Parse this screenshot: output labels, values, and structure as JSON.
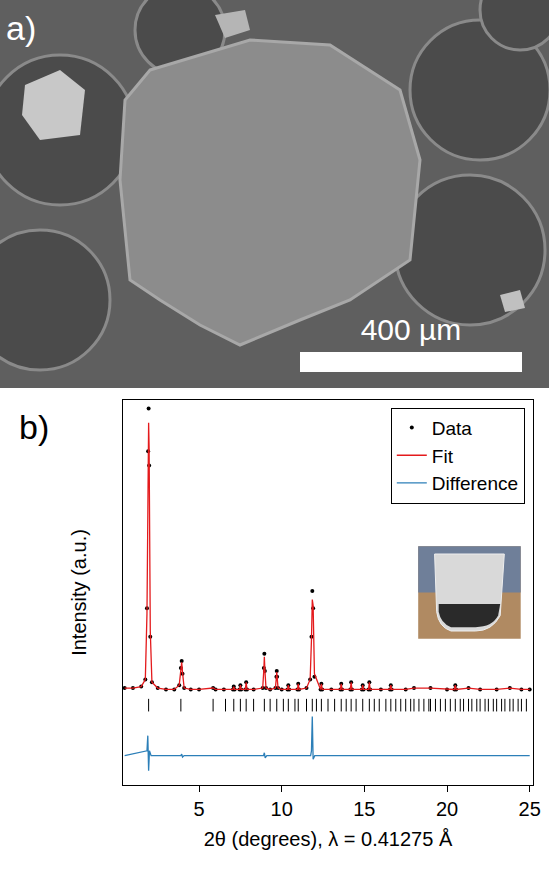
{
  "image_panel": {
    "label": "a)",
    "scale_bar": "400 µm"
  },
  "chart_data": {
    "type": "scatter",
    "label": "b)",
    "x_label": "2θ (degrees), λ = 0.41275 Å",
    "y_label": "Intensity (a.u.)",
    "xlim": [
      0.4,
      25.2
    ],
    "xticks": [
      5,
      10,
      15,
      20,
      25
    ],
    "ylim": [
      -0.32,
      1.03
    ],
    "tick_labels": "x",
    "grid": false,
    "legend": "upper right",
    "series": [
      {
        "name": "Data",
        "color": "#000000",
        "type": "scatter",
        "marker": "dot",
        "x": [
          0.5,
          1.0,
          1.5,
          1.75,
          1.85,
          1.92,
          1.95,
          1.98,
          2.05,
          2.15,
          2.5,
          3.0,
          3.5,
          3.8,
          3.9,
          3.95,
          4.0,
          4.1,
          4.5,
          5.0,
          5.85,
          6.0,
          6.5,
          7.05,
          7.1,
          7.15,
          7.45,
          7.5,
          7.55,
          7.8,
          7.85,
          7.9,
          8.3,
          8.85,
          8.92,
          8.95,
          8.98,
          9.05,
          9.3,
          9.62,
          9.68,
          9.7,
          9.72,
          9.78,
          10.0,
          10.35,
          10.4,
          10.45,
          10.95,
          11.0,
          11.05,
          11.5,
          11.72,
          11.8,
          11.85,
          11.9,
          11.98,
          12.35,
          12.4,
          12.45,
          13.0,
          13.55,
          13.6,
          13.65,
          14.15,
          14.2,
          14.25,
          14.85,
          14.9,
          14.95,
          15.25,
          15.3,
          15.35,
          16.0,
          16.55,
          16.6,
          16.65,
          17.5,
          18.0,
          19.0,
          20.0,
          20.45,
          20.5,
          20.55,
          21.3,
          22.0,
          23.0,
          23.8,
          24.5,
          25.0
        ],
        "values": [
          0.02,
          0.02,
          0.025,
          0.05,
          0.3,
          0.85,
          1.0,
          0.8,
          0.2,
          0.04,
          0.02,
          0.015,
          0.015,
          0.03,
          0.09,
          0.115,
          0.07,
          0.02,
          0.015,
          0.015,
          0.02,
          0.015,
          0.015,
          0.015,
          0.025,
          0.015,
          0.015,
          0.03,
          0.015,
          0.015,
          0.04,
          0.015,
          0.015,
          0.02,
          0.09,
          0.14,
          0.08,
          0.02,
          0.015,
          0.02,
          0.06,
          0.08,
          0.06,
          0.02,
          0.015,
          0.015,
          0.03,
          0.015,
          0.015,
          0.035,
          0.015,
          0.02,
          0.05,
          0.2,
          0.36,
          0.3,
          0.06,
          0.015,
          0.035,
          0.015,
          0.015,
          0.015,
          0.035,
          0.015,
          0.015,
          0.04,
          0.015,
          0.015,
          0.03,
          0.015,
          0.015,
          0.04,
          0.015,
          0.015,
          0.015,
          0.03,
          0.015,
          0.015,
          0.02,
          0.02,
          0.015,
          0.015,
          0.03,
          0.015,
          0.02,
          0.015,
          0.015,
          0.02,
          0.015,
          0.015
        ]
      },
      {
        "name": "Fit",
        "color": "#e41a1c",
        "type": "line",
        "line_style": "solid",
        "x": [
          0.5,
          1.0,
          1.5,
          1.75,
          1.85,
          1.92,
          1.95,
          1.98,
          2.05,
          2.15,
          2.5,
          3.0,
          3.5,
          3.8,
          3.9,
          3.95,
          4.0,
          4.1,
          4.5,
          5.0,
          5.85,
          6.0,
          6.5,
          7.05,
          7.1,
          7.15,
          7.45,
          7.5,
          7.55,
          7.8,
          7.85,
          7.9,
          8.3,
          8.85,
          8.92,
          8.95,
          8.98,
          9.05,
          9.3,
          9.62,
          9.68,
          9.7,
          9.72,
          9.78,
          10.0,
          10.35,
          10.4,
          10.45,
          10.95,
          11.0,
          11.05,
          11.5,
          11.72,
          11.8,
          11.85,
          11.9,
          11.98,
          12.35,
          12.4,
          12.45,
          13.0,
          13.55,
          13.6,
          13.65,
          14.15,
          14.2,
          14.25,
          14.85,
          14.9,
          14.95,
          15.25,
          15.3,
          15.35,
          16.0,
          16.55,
          16.6,
          16.65,
          17.5,
          18.0,
          19.0,
          20.0,
          20.45,
          20.5,
          20.55,
          21.3,
          22.0,
          23.0,
          23.8,
          24.5,
          25.0
        ],
        "values": [
          0.02,
          0.02,
          0.025,
          0.05,
          0.28,
          0.8,
          0.95,
          0.86,
          0.22,
          0.04,
          0.02,
          0.015,
          0.015,
          0.03,
          0.085,
          0.11,
          0.075,
          0.02,
          0.015,
          0.015,
          0.02,
          0.015,
          0.015,
          0.015,
          0.025,
          0.015,
          0.015,
          0.03,
          0.015,
          0.015,
          0.04,
          0.015,
          0.015,
          0.02,
          0.085,
          0.13,
          0.085,
          0.02,
          0.015,
          0.02,
          0.06,
          0.076,
          0.06,
          0.02,
          0.015,
          0.015,
          0.03,
          0.015,
          0.015,
          0.035,
          0.015,
          0.02,
          0.05,
          0.19,
          0.33,
          0.31,
          0.07,
          0.015,
          0.035,
          0.015,
          0.015,
          0.015,
          0.035,
          0.015,
          0.015,
          0.04,
          0.015,
          0.015,
          0.03,
          0.015,
          0.015,
          0.04,
          0.015,
          0.015,
          0.015,
          0.03,
          0.015,
          0.015,
          0.02,
          0.02,
          0.015,
          0.015,
          0.03,
          0.015,
          0.02,
          0.015,
          0.015,
          0.02,
          0.015,
          0.015
        ]
      },
      {
        "name": "Difference",
        "color": "#2c7fb8",
        "type": "line",
        "line_style": "solid",
        "x": [
          0.5,
          1.85,
          1.9,
          1.95,
          2.0,
          2.1,
          3.9,
          3.95,
          4.0,
          4.1,
          8.9,
          8.95,
          9.0,
          9.1,
          11.75,
          11.8,
          11.85,
          11.9,
          12.0,
          25.0
        ],
        "values": [
          -0.217,
          -0.2,
          -0.147,
          -0.27,
          -0.2,
          -0.217,
          -0.217,
          -0.212,
          -0.222,
          -0.217,
          -0.217,
          -0.207,
          -0.225,
          -0.217,
          -0.217,
          -0.2,
          -0.08,
          -0.23,
          -0.217,
          -0.217
        ]
      }
    ],
    "reflections": {
      "color": "#000000",
      "marker": "line",
      "x": [
        1.95,
        3.9,
        5.85,
        6.6,
        7.1,
        7.5,
        7.85,
        8.3,
        8.95,
        9.3,
        9.7,
        10.1,
        10.4,
        10.8,
        11.0,
        11.5,
        11.85,
        12.1,
        12.4,
        12.8,
        13.2,
        13.6,
        13.9,
        14.2,
        14.5,
        14.9,
        15.3,
        15.6,
        15.9,
        16.3,
        16.6,
        16.9,
        17.2,
        17.5,
        17.8,
        18.0,
        18.3,
        18.6,
        18.9,
        19.0,
        19.3,
        19.6,
        19.9,
        20.2,
        20.5,
        20.8,
        21.0,
        21.3,
        21.5,
        21.8,
        22.0,
        22.3,
        22.5,
        22.8,
        23.0,
        23.3,
        23.5,
        23.8,
        24.0,
        24.3,
        24.5,
        24.8
      ],
      "y": -0.04
    }
  }
}
